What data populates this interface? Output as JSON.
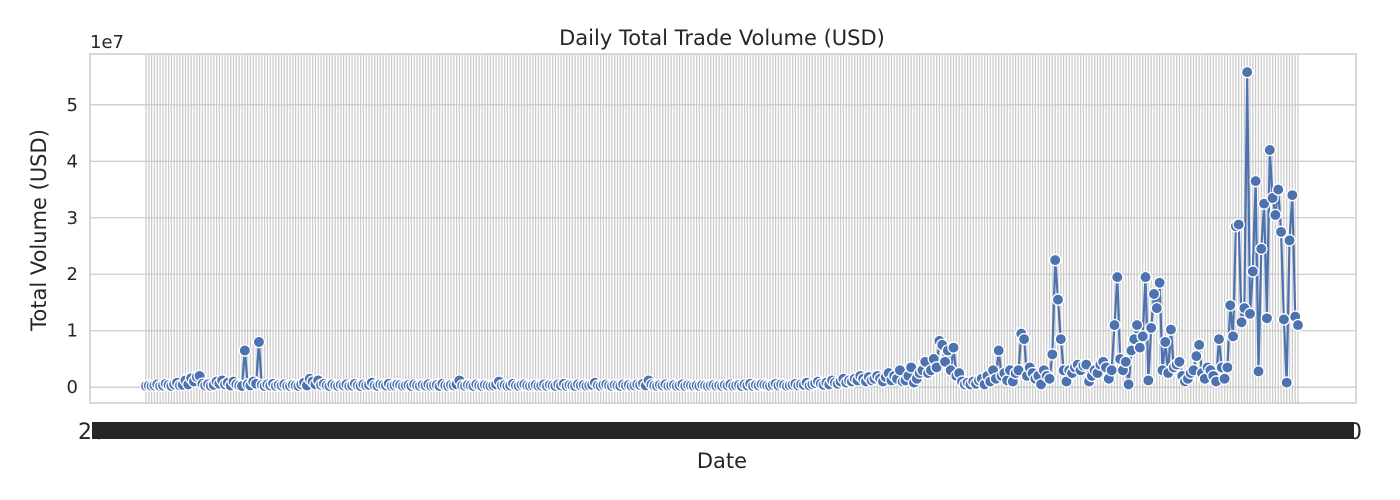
{
  "chart_data": {
    "type": "line",
    "title": "Daily Total Trade Volume (USD)",
    "xlabel": "Date",
    "ylabel": "Total Volume (USD)",
    "scale_label": "1e7",
    "y_unit": 10000000,
    "yticks": [
      0,
      1,
      2,
      3,
      4,
      5
    ],
    "ylim": [
      -0.28,
      5.9
    ],
    "grid": true,
    "markers": true,
    "x_tick_labels_overlapping": true,
    "x_tick_label_fragments": [
      "20",
      "20"
    ],
    "color": "#4c72b0",
    "values": [
      0.02,
      0.03,
      0.02,
      0.03,
      0.05,
      0.02,
      0.03,
      0.06,
      0.04,
      0.02,
      0.05,
      0.08,
      0.03,
      0.04,
      0.12,
      0.05,
      0.16,
      0.1,
      0.18,
      0.2,
      0.06,
      0.03,
      0.05,
      0.02,
      0.04,
      0.1,
      0.06,
      0.12,
      0.05,
      0.08,
      0.03,
      0.1,
      0.05,
      0.03,
      0.02,
      0.65,
      0.05,
      0.03,
      0.1,
      0.06,
      0.8,
      0.04,
      0.02,
      0.05,
      0.03,
      0.06,
      0.02,
      0.04,
      0.03,
      0.05,
      0.02,
      0.02,
      0.04,
      0.03,
      0.02,
      0.05,
      0.08,
      0.03,
      0.15,
      0.1,
      0.05,
      0.12,
      0.04,
      0.06,
      0.03,
      0.02,
      0.05,
      0.03,
      0.02,
      0.04,
      0.03,
      0.05,
      0.02,
      0.03,
      0.06,
      0.03,
      0.02,
      0.05,
      0.03,
      0.04,
      0.08,
      0.03,
      0.02,
      0.05,
      0.04,
      0.03,
      0.06,
      0.02,
      0.03,
      0.05,
      0.04,
      0.02,
      0.03,
      0.04,
      0.02,
      0.05,
      0.03,
      0.02,
      0.04,
      0.03,
      0.05,
      0.02,
      0.03,
      0.04,
      0.02,
      0.06,
      0.03,
      0.02,
      0.04,
      0.03,
      0.05,
      0.12,
      0.03,
      0.02,
      0.04,
      0.03,
      0.02,
      0.05,
      0.03,
      0.02,
      0.04,
      0.03,
      0.02,
      0.03,
      0.05,
      0.1,
      0.03,
      0.04,
      0.02,
      0.03,
      0.06,
      0.03,
      0.02,
      0.04,
      0.05,
      0.03,
      0.02,
      0.03,
      0.04,
      0.02,
      0.03,
      0.05,
      0.02,
      0.04,
      0.03,
      0.02,
      0.05,
      0.03,
      0.06,
      0.02,
      0.04,
      0.03,
      0.02,
      0.05,
      0.03,
      0.04,
      0.02,
      0.03,
      0.04,
      0.08,
      0.03,
      0.02,
      0.04,
      0.05,
      0.03,
      0.02,
      0.04,
      0.03,
      0.02,
      0.05,
      0.03,
      0.04,
      0.02,
      0.03,
      0.05,
      0.04,
      0.06,
      0.03,
      0.12,
      0.05,
      0.03,
      0.02,
      0.04,
      0.03,
      0.05,
      0.02,
      0.03,
      0.04,
      0.02,
      0.03,
      0.05,
      0.02,
      0.04,
      0.03,
      0.02,
      0.03,
      0.02,
      0.04,
      0.03,
      0.02,
      0.03,
      0.04,
      0.02,
      0.03,
      0.02,
      0.04,
      0.03,
      0.05,
      0.02,
      0.03,
      0.04,
      0.02,
      0.05,
      0.03,
      0.06,
      0.02,
      0.04,
      0.03,
      0.05,
      0.04,
      0.03,
      0.02,
      0.04,
      0.06,
      0.03,
      0.05,
      0.04,
      0.02,
      0.03,
      0.04,
      0.06,
      0.03,
      0.05,
      0.04,
      0.08,
      0.03,
      0.05,
      0.07,
      0.1,
      0.06,
      0.04,
      0.08,
      0.05,
      0.12,
      0.08,
      0.06,
      0.1,
      0.15,
      0.08,
      0.12,
      0.1,
      0.15,
      0.12,
      0.2,
      0.15,
      0.1,
      0.18,
      0.12,
      0.15,
      0.2,
      0.15,
      0.1,
      0.18,
      0.25,
      0.12,
      0.2,
      0.15,
      0.3,
      0.1,
      0.12,
      0.2,
      0.35,
      0.08,
      0.15,
      0.25,
      0.3,
      0.45,
      0.25,
      0.3,
      0.5,
      0.35,
      0.82,
      0.75,
      0.45,
      0.65,
      0.3,
      0.7,
      0.2,
      0.25,
      0.1,
      0.05,
      0.08,
      0.05,
      0.1,
      0.06,
      0.12,
      0.15,
      0.05,
      0.2,
      0.1,
      0.3,
      0.15,
      0.65,
      0.2,
      0.25,
      0.12,
      0.3,
      0.1,
      0.25,
      0.3,
      0.95,
      0.85,
      0.2,
      0.35,
      0.25,
      0.15,
      0.2,
      0.05,
      0.3,
      0.2,
      0.15,
      0.58,
      2.25,
      1.55,
      0.85,
      0.3,
      0.1,
      0.3,
      0.25,
      0.35,
      0.4,
      0.3,
      0.38,
      0.4,
      0.1,
      0.2,
      0.3,
      0.25,
      0.4,
      0.45,
      0.35,
      0.15,
      0.3,
      1.1,
      1.95,
      0.5,
      0.3,
      0.45,
      0.05,
      0.65,
      0.85,
      1.1,
      0.7,
      0.9,
      1.95,
      0.12,
      1.05,
      1.65,
      1.4,
      1.85,
      0.3,
      0.8,
      0.25,
      1.02,
      0.35,
      0.4,
      0.45,
      0.2,
      0.1,
      0.15,
      0.25,
      0.3,
      0.55,
      0.75,
      0.25,
      0.15,
      0.35,
      0.3,
      0.2,
      0.1,
      0.85,
      0.35,
      0.15,
      0.35,
      1.45,
      0.9,
      2.85,
      2.88,
      1.15,
      1.4,
      5.58,
      1.3,
      2.05,
      3.65,
      0.28,
      2.45,
      3.25,
      1.22,
      4.2,
      3.35,
      3.05,
      3.5,
      2.75,
      1.2,
      0.08,
      2.6,
      3.4,
      1.25,
      1.1
    ]
  }
}
